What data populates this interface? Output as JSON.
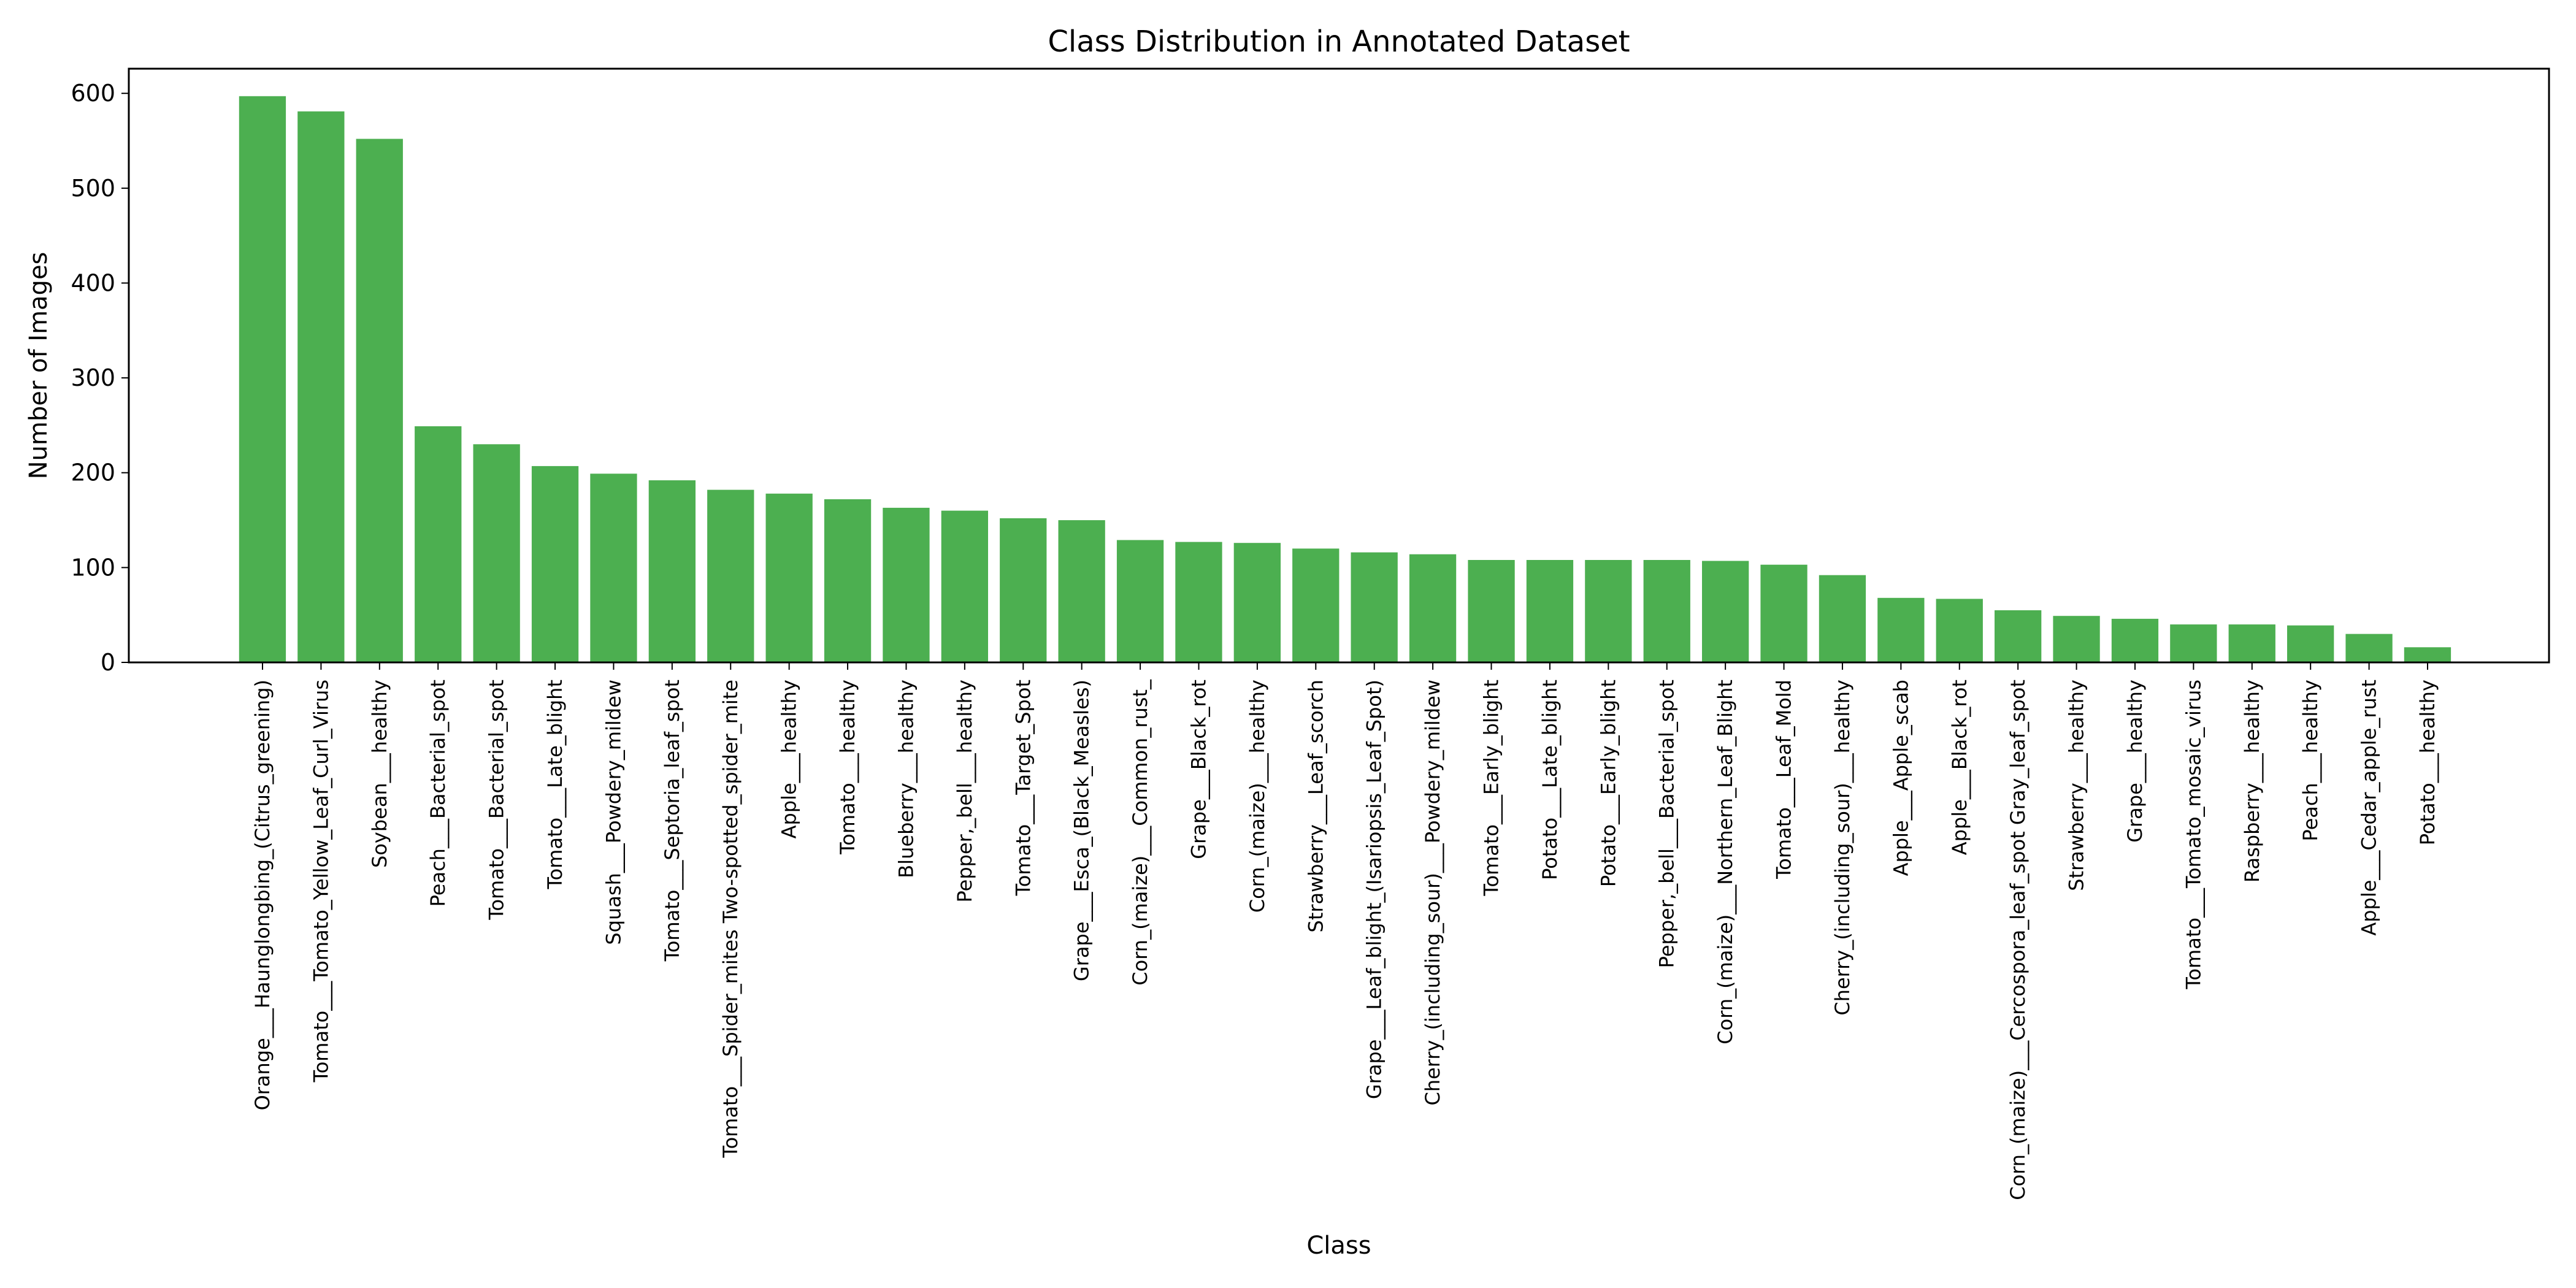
{
  "chart_data": {
    "type": "bar",
    "title": "Class Distribution in Annotated Dataset",
    "xlabel": "Class",
    "ylabel": "Number of Images",
    "ylim": [
      0,
      626
    ],
    "yticks": [
      0,
      100,
      200,
      300,
      400,
      500,
      600
    ],
    "grid": false,
    "legend": "none",
    "bar_color": "#4caf50",
    "categories": [
      "Orange___Haunglongbing_(Citrus_greening)",
      "Tomato___Tomato_Yellow_Leaf_Curl_Virus",
      "Soybean___healthy",
      "Peach___Bacterial_spot",
      "Tomato___Bacterial_spot",
      "Tomato___Late_blight",
      "Squash___Powdery_mildew",
      "Tomato___Septoria_leaf_spot",
      "Tomato___Spider_mites Two-spotted_spider_mite",
      "Apple___healthy",
      "Tomato___healthy",
      "Blueberry___healthy",
      "Pepper,_bell___healthy",
      "Tomato___Target_Spot",
      "Grape___Esca_(Black_Measles)",
      "Corn_(maize)___Common_rust_",
      "Grape___Black_rot",
      "Corn_(maize)___healthy",
      "Strawberry___Leaf_scorch",
      "Grape___Leaf_blight_(Isariopsis_Leaf_Spot)",
      "Cherry_(including_sour)___Powdery_mildew",
      "Tomato___Early_blight",
      "Potato___Late_blight",
      "Potato___Early_blight",
      "Pepper,_bell___Bacterial_spot",
      "Corn_(maize)___Northern_Leaf_Blight",
      "Tomato___Leaf_Mold",
      "Cherry_(including_sour)___healthy",
      "Apple___Apple_scab",
      "Apple___Black_rot",
      "Corn_(maize)___Cercospora_leaf_spot Gray_leaf_spot",
      "Strawberry___healthy",
      "Grape___healthy",
      "Tomato___Tomato_mosaic_virus",
      "Raspberry___healthy",
      "Peach___healthy",
      "Apple___Cedar_apple_rust",
      "Potato___healthy"
    ],
    "values": [
      597,
      581,
      552,
      249,
      230,
      207,
      199,
      192,
      182,
      178,
      172,
      163,
      160,
      152,
      150,
      129,
      127,
      126,
      120,
      116,
      114,
      108,
      108,
      108,
      108,
      107,
      103,
      92,
      68,
      67,
      55,
      49,
      46,
      40,
      40,
      39,
      30,
      16
    ]
  }
}
